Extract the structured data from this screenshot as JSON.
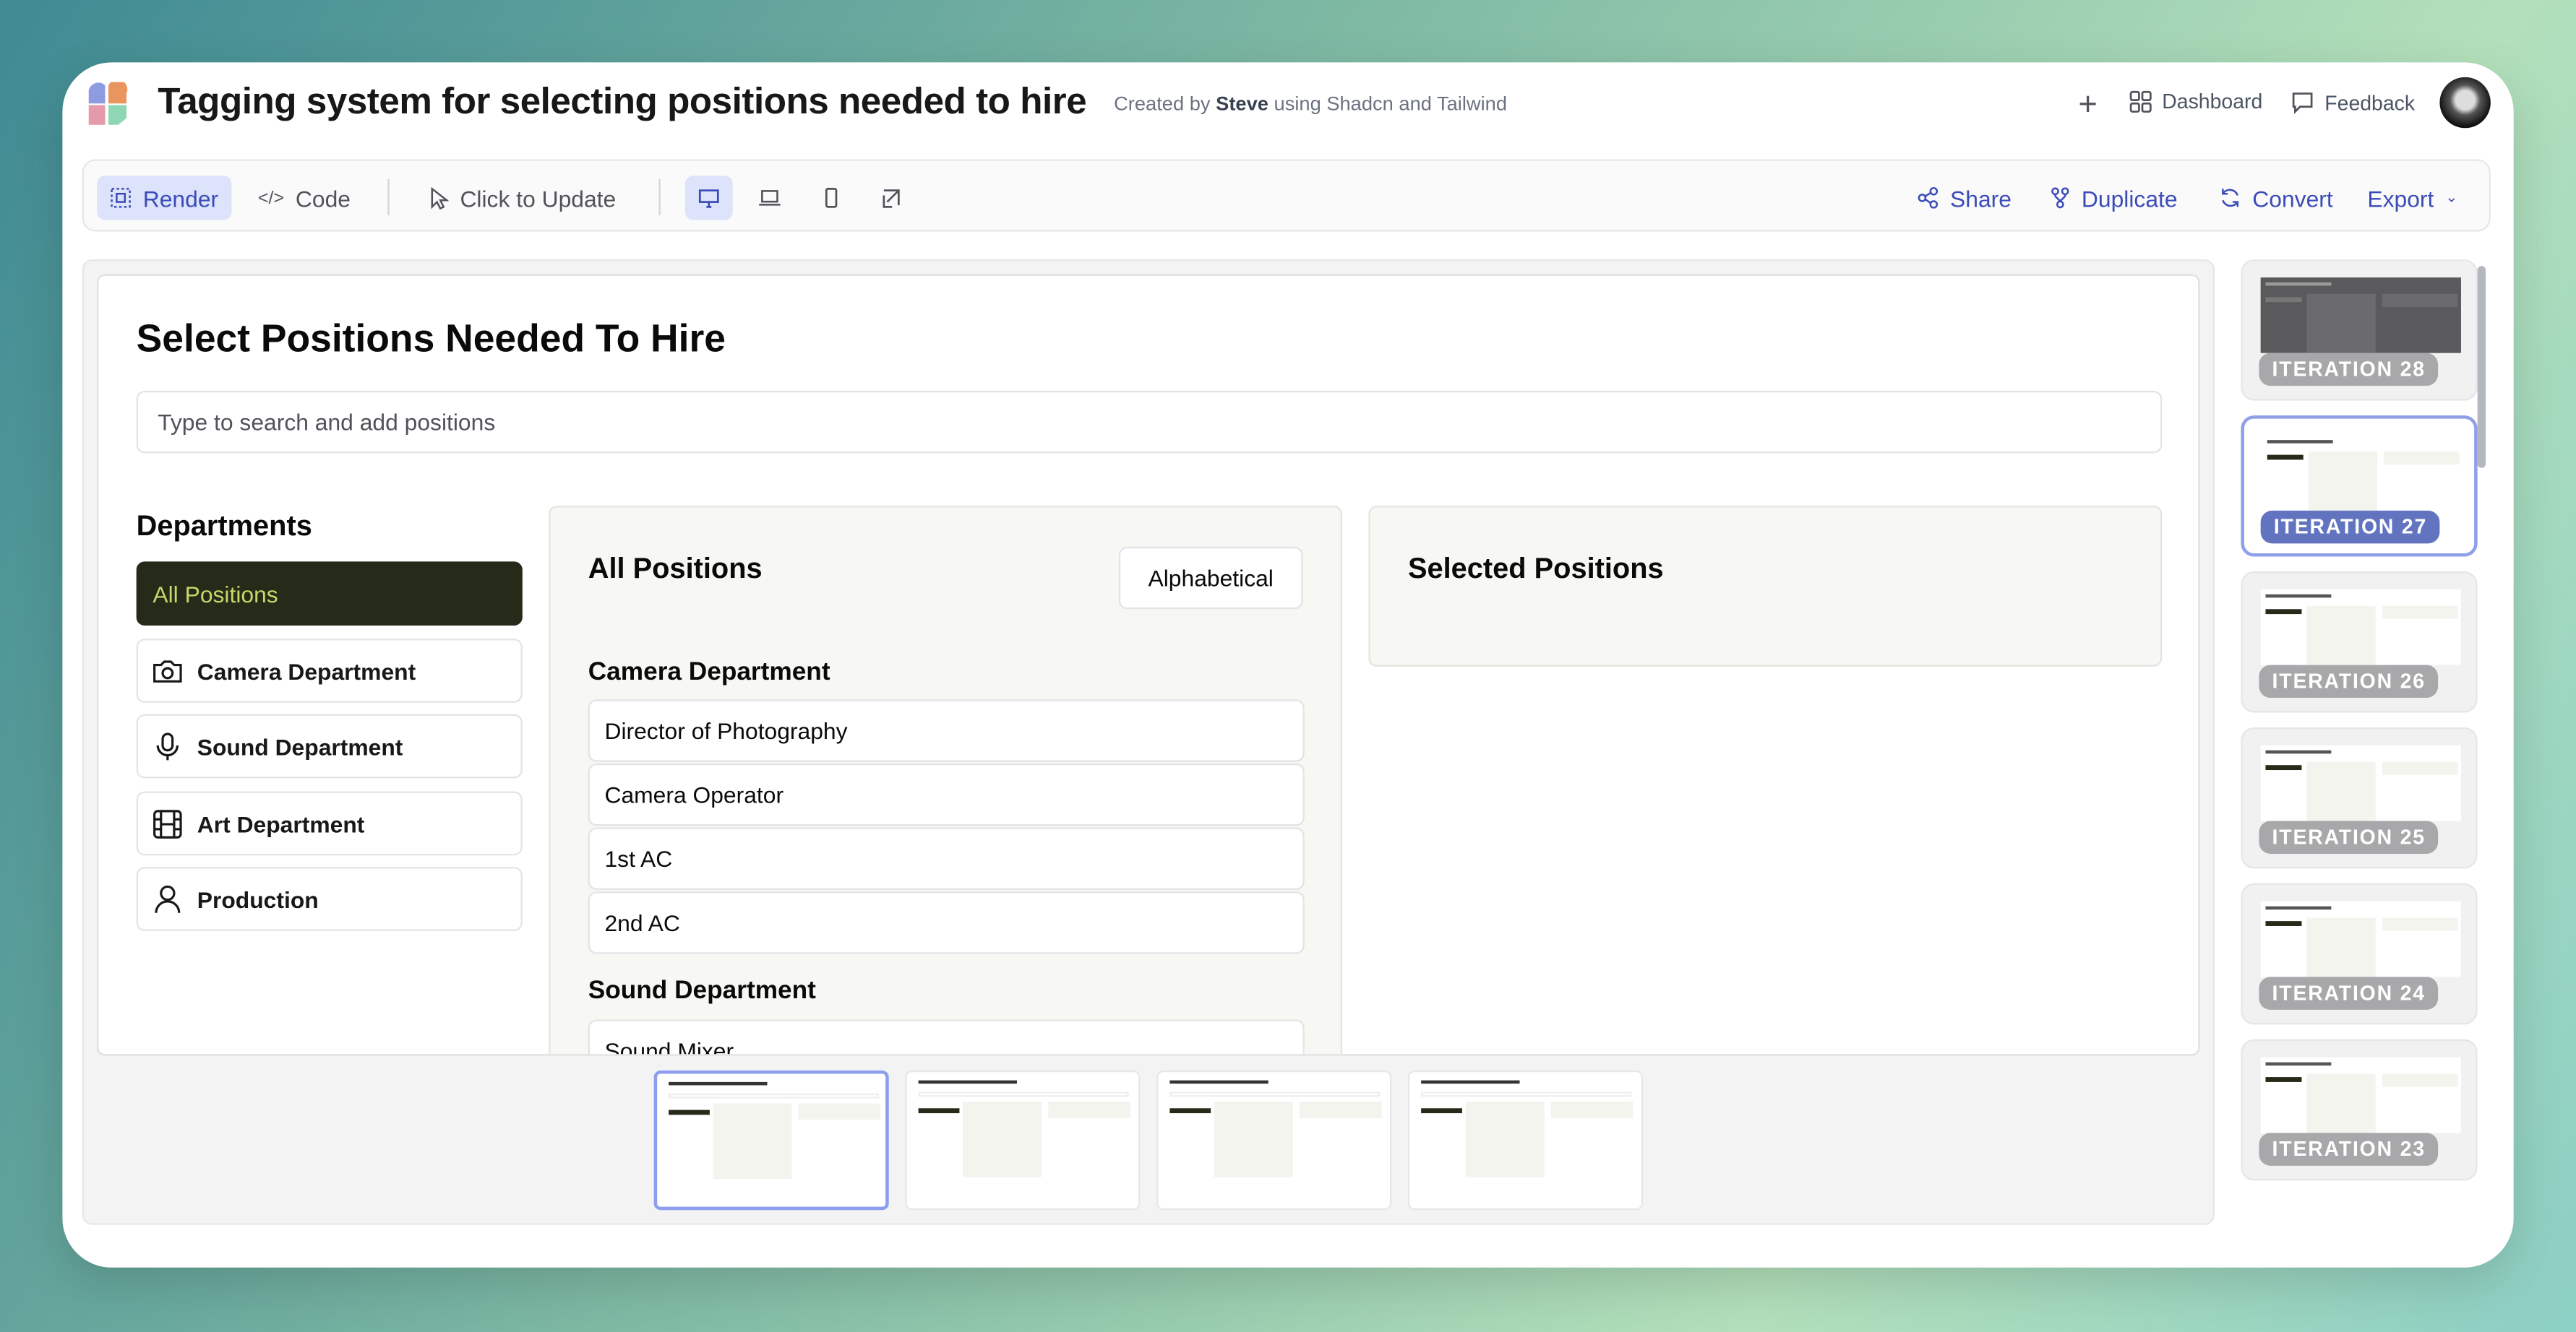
{
  "header": {
    "title": "Tagging system for selecting positions needed to hire",
    "created_by_prefix": "Created by",
    "author": "Steve",
    "created_by_suffix": "using Shadcn and Tailwind",
    "dashboard": "Dashboard",
    "feedback": "Feedback"
  },
  "toolbar": {
    "render": "Render",
    "code": "Code",
    "click_to_update": "Click to Update",
    "share": "Share",
    "duplicate": "Duplicate",
    "convert": "Convert",
    "export": "Export"
  },
  "preview": {
    "heading": "Select Positions Needed To Hire",
    "search_placeholder": "Type to search and add positions",
    "departments_title": "Departments",
    "departments": [
      {
        "label": "All Positions",
        "icon": "none"
      },
      {
        "label": "Camera Department",
        "icon": "camera-icon"
      },
      {
        "label": "Sound Department",
        "icon": "mic-icon"
      },
      {
        "label": "Art Department",
        "icon": "film-icon"
      },
      {
        "label": "Production",
        "icon": "user-icon"
      }
    ],
    "all_positions_title": "All Positions",
    "sort_button": "Alphabetical",
    "groups": [
      {
        "name": "Camera Department",
        "positions": [
          "Director of Photography",
          "Camera Operator",
          "1st AC",
          "2nd AC"
        ]
      },
      {
        "name": "Sound Department",
        "positions": [
          "Sound Mixer"
        ]
      }
    ],
    "selected_title": "Selected Positions"
  },
  "iterations": [
    "ITERATION 28",
    "ITERATION 27",
    "ITERATION 26",
    "ITERATION 25",
    "ITERATION 24",
    "ITERATION 23"
  ],
  "colors": {
    "accent": "#3b4cb8",
    "active_dept_bg": "#262a18",
    "active_dept_text": "#c6d86a",
    "selected_badge": "#6274c0"
  }
}
